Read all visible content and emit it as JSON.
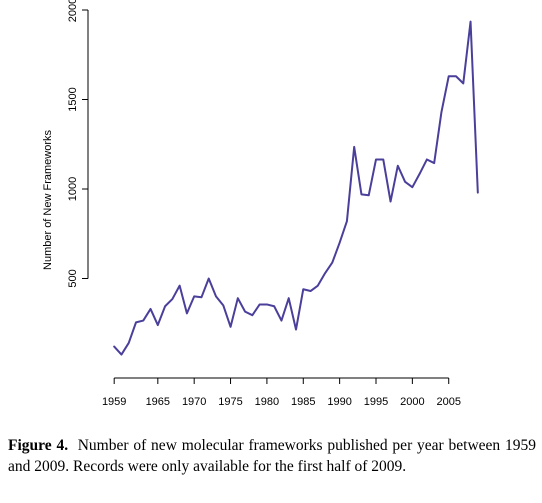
{
  "chart_data": {
    "type": "line",
    "title": "",
    "xlabel": "",
    "ylabel": "Number of New Frameworks",
    "xlim": [
      1956.5,
      2011.5
    ],
    "ylim": [
      0,
      2000
    ],
    "xticks": [
      1959,
      1965,
      1970,
      1975,
      1980,
      1985,
      1990,
      1995,
      2000,
      2005
    ],
    "yticks": [
      500,
      1000,
      1500,
      2000
    ],
    "grid": false,
    "color": "#4a3f9a",
    "x": [
      1959,
      1960,
      1961,
      1962,
      1963,
      1964,
      1965,
      1966,
      1967,
      1968,
      1969,
      1970,
      1971,
      1972,
      1973,
      1974,
      1975,
      1976,
      1977,
      1978,
      1979,
      1980,
      1981,
      1982,
      1983,
      1984,
      1985,
      1986,
      1987,
      1988,
      1989,
      1990,
      1991,
      1992,
      1993,
      1994,
      1995,
      1996,
      1997,
      1998,
      1999,
      2000,
      2001,
      2002,
      2003,
      2004,
      2005,
      2006,
      2007,
      2008,
      2009
    ],
    "series": [
      {
        "values": [
          120,
          75,
          140,
          255,
          265,
          330,
          240,
          345,
          385,
          460,
          305,
          400,
          395,
          500,
          400,
          350,
          230,
          390,
          315,
          295,
          355,
          355,
          345,
          265,
          390,
          215,
          440,
          430,
          460,
          530,
          590,
          700,
          820,
          1235,
          970,
          965,
          1165,
          1165,
          930,
          1130,
          1040,
          1010,
          1085,
          1165,
          1145,
          1430,
          1630,
          1630,
          1590,
          1935,
          980
        ]
      }
    ]
  },
  "caption": {
    "label": "Figure 4.",
    "text": "Number of new molecular frameworks published per year between 1959 and 2009. Records were only available for the first half of 2009."
  }
}
